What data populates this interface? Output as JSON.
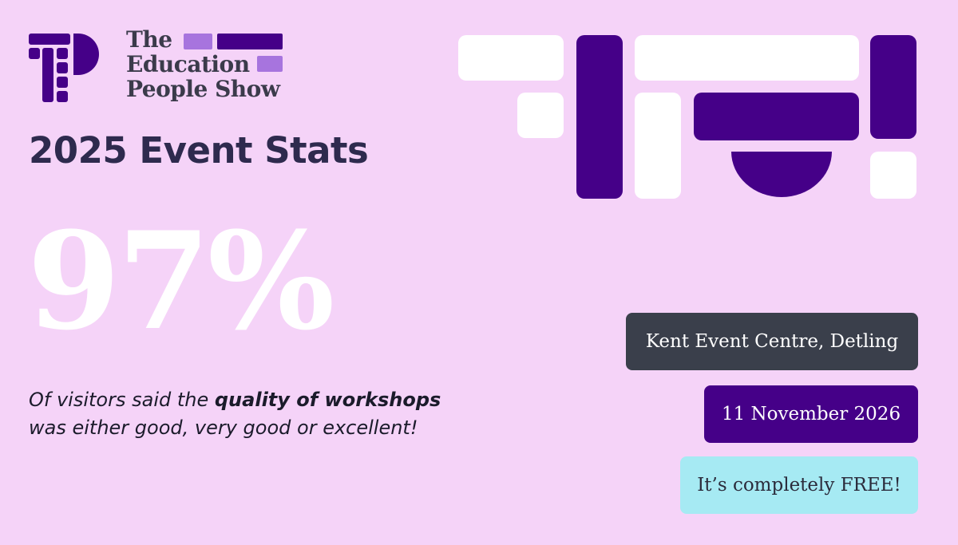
{
  "logo": {
    "line1": "The",
    "line2": "Education",
    "line3": "People Show"
  },
  "heading": "2025 Event Stats",
  "stat": {
    "value": "97%",
    "desc_pre": "Of visitors said the ",
    "desc_bold": "quality of workshops",
    "desc_post": " was either good, very good or excellent!"
  },
  "pills": {
    "venue": "Kent Event Centre, Detling",
    "date": "11 November 2026",
    "free": "It’s completely FREE!"
  },
  "colors": {
    "background": "#f5d3f8",
    "brand_purple": "#450088",
    "lilac": "#a774de",
    "white": "#ffffff",
    "dark_slate": "#3a3f4b",
    "cyan": "#a6eaf3"
  }
}
